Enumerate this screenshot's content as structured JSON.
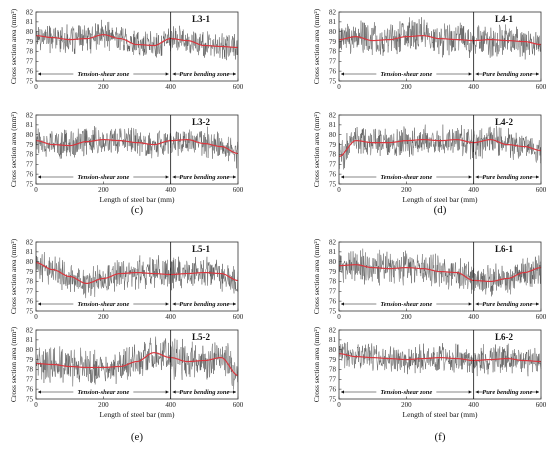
{
  "colors": {
    "raw": "#555555",
    "smooth": "#d9363e",
    "axis": "#333333"
  },
  "chart_data": [
    {
      "type": "line",
      "group_label": "(c)",
      "title": "L3-1",
      "xlabel": "",
      "ylabel": "Cross section area (mm²)",
      "x_ticks": [
        0,
        200,
        400,
        600
      ],
      "y_ticks": [
        75,
        76,
        77,
        78,
        79,
        80,
        81,
        82
      ],
      "xlim": [
        0,
        600
      ],
      "ylim": [
        75,
        82
      ],
      "zones": [
        {
          "label": "Tension-shear zone",
          "x_start": 0,
          "x_end": 400
        },
        {
          "label": "Pure bending zone",
          "x_start": 400,
          "x_end": 600
        }
      ],
      "raw_noise": 1.4,
      "series": [
        {
          "x": [
            0,
            50,
            100,
            150,
            200,
            250,
            300,
            350,
            400,
            450,
            500,
            550,
            600
          ],
          "values": [
            79.6,
            79.4,
            79.2,
            79.3,
            79.7,
            79.3,
            78.7,
            78.6,
            79.3,
            79.1,
            78.6,
            78.5,
            78.4
          ]
        }
      ]
    },
    {
      "type": "line",
      "title": "L3-2",
      "xlabel": "Length of steel bar (mm)",
      "ylabel": "Cross section area (mm²)",
      "x_ticks": [
        0,
        200,
        400,
        600
      ],
      "y_ticks": [
        75,
        76,
        77,
        78,
        79,
        80,
        81,
        82
      ],
      "xlim": [
        0,
        600
      ],
      "ylim": [
        75,
        82
      ],
      "zones": [
        {
          "label": "Tension-shear zone",
          "x_start": 0,
          "x_end": 400
        },
        {
          "label": "Pure bending zone",
          "x_start": 400,
          "x_end": 600
        }
      ],
      "raw_noise": 1.5,
      "series": [
        {
          "x": [
            0,
            50,
            100,
            150,
            200,
            250,
            300,
            350,
            400,
            450,
            500,
            550,
            600
          ],
          "values": [
            79.4,
            79.0,
            78.9,
            79.3,
            79.5,
            79.4,
            79.2,
            79.0,
            79.4,
            79.5,
            79.1,
            78.8,
            78.1
          ]
        }
      ]
    },
    {
      "type": "line",
      "group_label": "(d)",
      "title": "L4-1",
      "xlabel": "",
      "ylabel": "Cross section area (mm²)",
      "x_ticks": [
        0,
        200,
        400,
        600
      ],
      "y_ticks": [
        75,
        76,
        77,
        78,
        79,
        80,
        81,
        82
      ],
      "xlim": [
        0,
        600
      ],
      "ylim": [
        75,
        82
      ],
      "zones": [
        {
          "label": "Tension-shear zone",
          "x_start": 0,
          "x_end": 400
        },
        {
          "label": "Pure bending zone",
          "x_start": 400,
          "x_end": 600
        }
      ],
      "raw_noise": 1.7,
      "series": [
        {
          "x": [
            0,
            50,
            100,
            150,
            200,
            250,
            300,
            350,
            400,
            450,
            500,
            550,
            600
          ],
          "values": [
            79.2,
            79.5,
            79.1,
            79.2,
            79.5,
            79.6,
            79.3,
            79.2,
            79.1,
            79.2,
            79.1,
            79.0,
            78.7
          ]
        }
      ]
    },
    {
      "type": "line",
      "title": "L4-2",
      "xlabel": "Length of steel bar (mm)",
      "ylabel": "Cross section area (mm²)",
      "x_ticks": [
        0,
        200,
        400,
        600
      ],
      "y_ticks": [
        75,
        76,
        77,
        78,
        79,
        80,
        81,
        82
      ],
      "xlim": [
        0,
        600
      ],
      "ylim": [
        75,
        82
      ],
      "zones": [
        {
          "label": "Tension-shear zone",
          "x_start": 0,
          "x_end": 400
        },
        {
          "label": "Pure bending zone",
          "x_start": 400,
          "x_end": 600
        }
      ],
      "raw_noise": 1.5,
      "series": [
        {
          "x": [
            0,
            50,
            100,
            150,
            200,
            250,
            300,
            350,
            400,
            450,
            500,
            550,
            600
          ],
          "values": [
            77.8,
            79.4,
            79.2,
            79.2,
            79.4,
            79.5,
            79.4,
            79.5,
            79.2,
            79.5,
            79.0,
            78.8,
            78.4
          ]
        }
      ]
    },
    {
      "type": "line",
      "group_label": "(e)",
      "title": "L5-1",
      "xlabel": "",
      "ylabel": "Cross section area (mm²)",
      "x_ticks": [
        0,
        200,
        400,
        600
      ],
      "y_ticks": [
        75,
        76,
        77,
        78,
        79,
        80,
        81,
        82
      ],
      "xlim": [
        0,
        600
      ],
      "ylim": [
        75,
        82
      ],
      "zones": [
        {
          "label": "Tension-shear zone",
          "x_start": 0,
          "x_end": 400
        },
        {
          "label": "Pure bending zone",
          "x_start": 400,
          "x_end": 600
        }
      ],
      "raw_noise": 1.6,
      "series": [
        {
          "x": [
            0,
            50,
            100,
            150,
            200,
            250,
            300,
            350,
            400,
            450,
            500,
            550,
            600
          ],
          "values": [
            79.9,
            79.2,
            78.5,
            77.8,
            78.3,
            78.8,
            78.9,
            78.8,
            78.7,
            78.8,
            78.9,
            78.8,
            78.1
          ]
        }
      ]
    },
    {
      "type": "line",
      "title": "L5-2",
      "xlabel": "Length of steel bar (mm)",
      "ylabel": "Cross section area (mm²)",
      "x_ticks": [
        0,
        200,
        400,
        600
      ],
      "y_ticks": [
        75,
        76,
        77,
        78,
        79,
        80,
        81,
        82
      ],
      "xlim": [
        0,
        600
      ],
      "ylim": [
        75,
        82
      ],
      "zones": [
        {
          "label": "Tension-shear zone",
          "x_start": 0,
          "x_end": 400
        },
        {
          "label": "Pure bending zone",
          "x_start": 400,
          "x_end": 600
        }
      ],
      "raw_noise": 1.9,
      "series": [
        {
          "x": [
            0,
            50,
            100,
            150,
            200,
            250,
            300,
            350,
            400,
            450,
            500,
            550,
            600
          ],
          "values": [
            78.6,
            78.5,
            78.3,
            78.2,
            78.2,
            78.3,
            78.8,
            79.7,
            79.2,
            78.8,
            78.9,
            79.2,
            77.4
          ]
        }
      ]
    },
    {
      "type": "line",
      "group_label": "(f)",
      "title": "L6-1",
      "xlabel": "",
      "ylabel": "Cross section area (mm²)",
      "x_ticks": [
        0,
        200,
        400,
        600
      ],
      "y_ticks": [
        75,
        76,
        77,
        78,
        79,
        80,
        81,
        82
      ],
      "xlim": [
        0,
        600
      ],
      "ylim": [
        75,
        82
      ],
      "zones": [
        {
          "label": "Tension-shear zone",
          "x_start": 0,
          "x_end": 400
        },
        {
          "label": "Pure bending zone",
          "x_start": 400,
          "x_end": 600
        }
      ],
      "raw_noise": 1.6,
      "series": [
        {
          "x": [
            0,
            50,
            100,
            150,
            200,
            250,
            300,
            350,
            400,
            450,
            500,
            550,
            600
          ],
          "values": [
            79.6,
            79.7,
            79.4,
            79.3,
            79.4,
            79.3,
            79.0,
            78.9,
            78.1,
            78.0,
            78.3,
            78.9,
            79.4
          ]
        }
      ]
    },
    {
      "type": "line",
      "title": "L6-2",
      "xlabel": "Length of steel bar (mm)",
      "ylabel": "Cross section area (mm²)",
      "x_ticks": [
        0,
        200,
        400,
        600
      ],
      "y_ticks": [
        75,
        76,
        77,
        78,
        79,
        80,
        81,
        82
      ],
      "xlim": [
        0,
        600
      ],
      "ylim": [
        75,
        82
      ],
      "zones": [
        {
          "label": "Tension-shear zone",
          "x_start": 0,
          "x_end": 400
        },
        {
          "label": "Pure bending zone",
          "x_start": 400,
          "x_end": 600
        }
      ],
      "raw_noise": 1.4,
      "series": [
        {
          "x": [
            0,
            50,
            100,
            150,
            200,
            250,
            300,
            350,
            400,
            450,
            500,
            550,
            600
          ],
          "values": [
            79.6,
            79.3,
            79.2,
            79.1,
            79.0,
            79.1,
            79.2,
            79.1,
            78.9,
            79.0,
            79.1,
            78.9,
            78.8
          ]
        }
      ]
    }
  ]
}
